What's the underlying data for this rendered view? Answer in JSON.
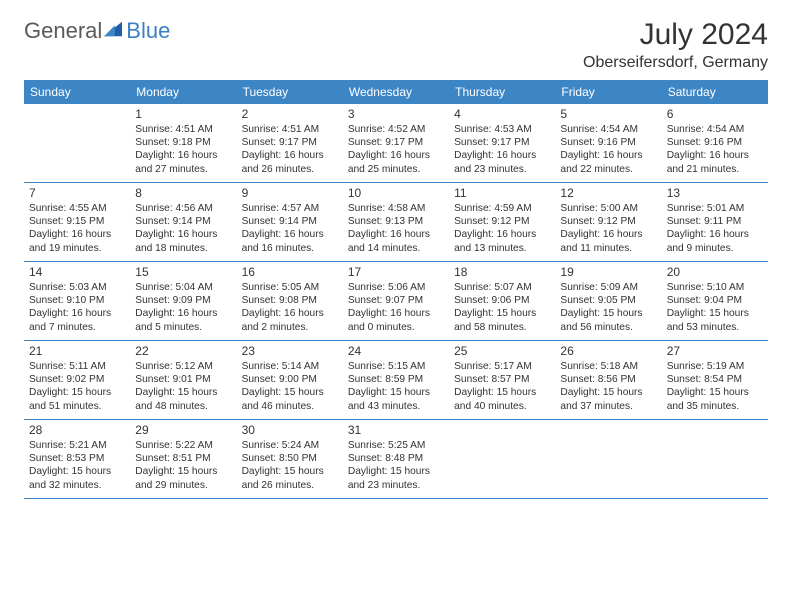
{
  "brand": {
    "word1": "General",
    "word2": "Blue",
    "color_general": "#5a5a5a",
    "color_blue": "#3b7fc4",
    "icon_fill": "#1e5fa6"
  },
  "header": {
    "title": "July 2024",
    "location": "Oberseifersdorf, Germany"
  },
  "colors": {
    "header_band": "#3d86c6",
    "header_text": "#ffffff",
    "rule": "#3d86c6",
    "body_text": "#333333",
    "background": "#ffffff"
  },
  "days": [
    "Sunday",
    "Monday",
    "Tuesday",
    "Wednesday",
    "Thursday",
    "Friday",
    "Saturday"
  ],
  "first_day_index": 1,
  "cells": [
    {
      "n": 1,
      "sr": "4:51 AM",
      "ss": "9:18 PM",
      "dl": "16 hours and 27 minutes."
    },
    {
      "n": 2,
      "sr": "4:51 AM",
      "ss": "9:17 PM",
      "dl": "16 hours and 26 minutes."
    },
    {
      "n": 3,
      "sr": "4:52 AM",
      "ss": "9:17 PM",
      "dl": "16 hours and 25 minutes."
    },
    {
      "n": 4,
      "sr": "4:53 AM",
      "ss": "9:17 PM",
      "dl": "16 hours and 23 minutes."
    },
    {
      "n": 5,
      "sr": "4:54 AM",
      "ss": "9:16 PM",
      "dl": "16 hours and 22 minutes."
    },
    {
      "n": 6,
      "sr": "4:54 AM",
      "ss": "9:16 PM",
      "dl": "16 hours and 21 minutes."
    },
    {
      "n": 7,
      "sr": "4:55 AM",
      "ss": "9:15 PM",
      "dl": "16 hours and 19 minutes."
    },
    {
      "n": 8,
      "sr": "4:56 AM",
      "ss": "9:14 PM",
      "dl": "16 hours and 18 minutes."
    },
    {
      "n": 9,
      "sr": "4:57 AM",
      "ss": "9:14 PM",
      "dl": "16 hours and 16 minutes."
    },
    {
      "n": 10,
      "sr": "4:58 AM",
      "ss": "9:13 PM",
      "dl": "16 hours and 14 minutes."
    },
    {
      "n": 11,
      "sr": "4:59 AM",
      "ss": "9:12 PM",
      "dl": "16 hours and 13 minutes."
    },
    {
      "n": 12,
      "sr": "5:00 AM",
      "ss": "9:12 PM",
      "dl": "16 hours and 11 minutes."
    },
    {
      "n": 13,
      "sr": "5:01 AM",
      "ss": "9:11 PM",
      "dl": "16 hours and 9 minutes."
    },
    {
      "n": 14,
      "sr": "5:03 AM",
      "ss": "9:10 PM",
      "dl": "16 hours and 7 minutes."
    },
    {
      "n": 15,
      "sr": "5:04 AM",
      "ss": "9:09 PM",
      "dl": "16 hours and 5 minutes."
    },
    {
      "n": 16,
      "sr": "5:05 AM",
      "ss": "9:08 PM",
      "dl": "16 hours and 2 minutes."
    },
    {
      "n": 17,
      "sr": "5:06 AM",
      "ss": "9:07 PM",
      "dl": "16 hours and 0 minutes."
    },
    {
      "n": 18,
      "sr": "5:07 AM",
      "ss": "9:06 PM",
      "dl": "15 hours and 58 minutes."
    },
    {
      "n": 19,
      "sr": "5:09 AM",
      "ss": "9:05 PM",
      "dl": "15 hours and 56 minutes."
    },
    {
      "n": 20,
      "sr": "5:10 AM",
      "ss": "9:04 PM",
      "dl": "15 hours and 53 minutes."
    },
    {
      "n": 21,
      "sr": "5:11 AM",
      "ss": "9:02 PM",
      "dl": "15 hours and 51 minutes."
    },
    {
      "n": 22,
      "sr": "5:12 AM",
      "ss": "9:01 PM",
      "dl": "15 hours and 48 minutes."
    },
    {
      "n": 23,
      "sr": "5:14 AM",
      "ss": "9:00 PM",
      "dl": "15 hours and 46 minutes."
    },
    {
      "n": 24,
      "sr": "5:15 AM",
      "ss": "8:59 PM",
      "dl": "15 hours and 43 minutes."
    },
    {
      "n": 25,
      "sr": "5:17 AM",
      "ss": "8:57 PM",
      "dl": "15 hours and 40 minutes."
    },
    {
      "n": 26,
      "sr": "5:18 AM",
      "ss": "8:56 PM",
      "dl": "15 hours and 37 minutes."
    },
    {
      "n": 27,
      "sr": "5:19 AM",
      "ss": "8:54 PM",
      "dl": "15 hours and 35 minutes."
    },
    {
      "n": 28,
      "sr": "5:21 AM",
      "ss": "8:53 PM",
      "dl": "15 hours and 32 minutes."
    },
    {
      "n": 29,
      "sr": "5:22 AM",
      "ss": "8:51 PM",
      "dl": "15 hours and 29 minutes."
    },
    {
      "n": 30,
      "sr": "5:24 AM",
      "ss": "8:50 PM",
      "dl": "15 hours and 26 minutes."
    },
    {
      "n": 31,
      "sr": "5:25 AM",
      "ss": "8:48 PM",
      "dl": "15 hours and 23 minutes."
    }
  ],
  "labels": {
    "sunrise": "Sunrise: ",
    "sunset": "Sunset: ",
    "daylight": "Daylight: "
  }
}
